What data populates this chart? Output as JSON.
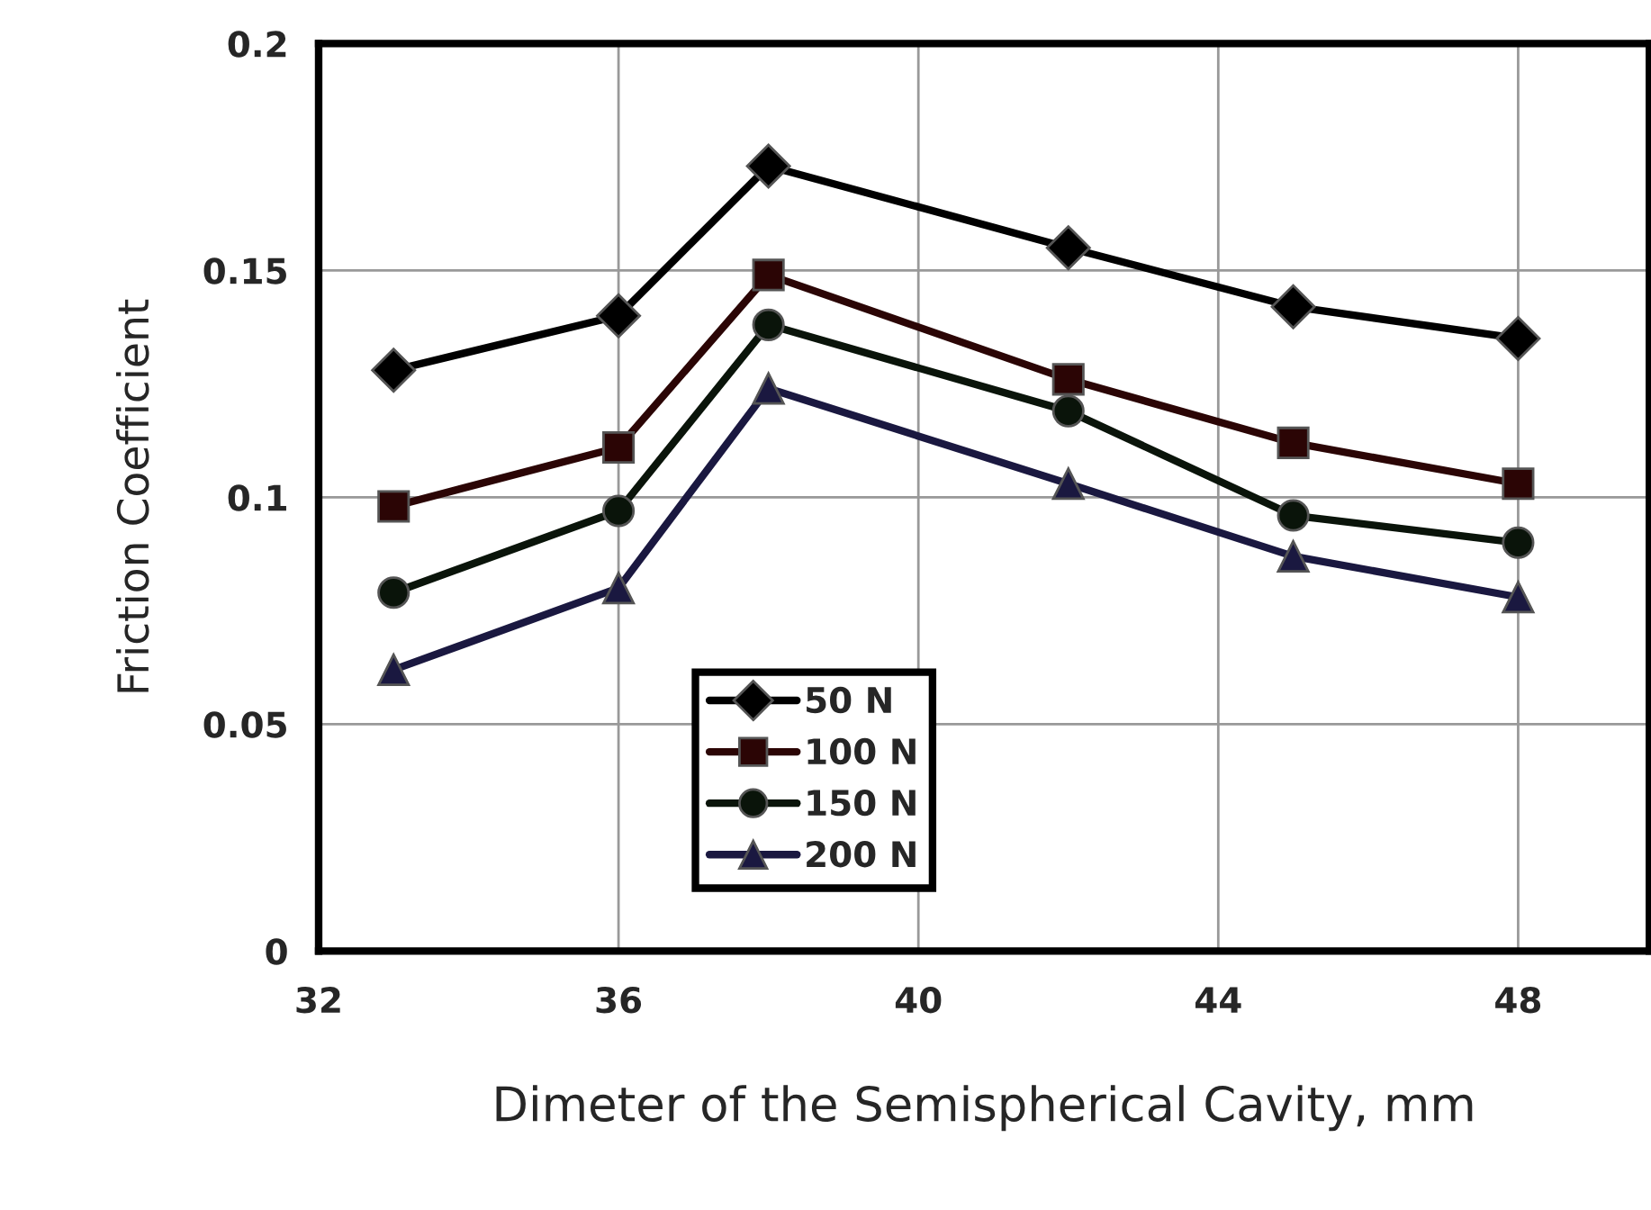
{
  "chart_data": {
    "type": "line",
    "xlabel": "Dimeter of the Semispherical Cavity, mm",
    "ylabel": "Friction Coefficient",
    "x": [
      33,
      36,
      38,
      42,
      45,
      48
    ],
    "series": [
      {
        "name": "50 N",
        "color": "#000000",
        "marker": "diamond",
        "values": [
          0.128,
          0.14,
          0.173,
          0.155,
          0.142,
          0.135
        ]
      },
      {
        "name": "100 N",
        "color": "#2b0505",
        "marker": "square",
        "values": [
          0.098,
          0.111,
          0.149,
          0.126,
          0.112,
          0.103
        ]
      },
      {
        "name": "150 N",
        "color": "#0a140a",
        "marker": "circle",
        "values": [
          0.079,
          0.097,
          0.138,
          0.119,
          0.096,
          0.09
        ]
      },
      {
        "name": "200 N",
        "color": "#1a1840",
        "marker": "triangle",
        "values": [
          0.062,
          0.08,
          0.124,
          0.103,
          0.087,
          0.078
        ]
      }
    ],
    "xlim": [
      32,
      49.75
    ],
    "xticks": [
      32,
      36,
      40,
      44,
      48
    ],
    "ylim": [
      0,
      0.2
    ],
    "yticks": [
      0,
      0.05,
      0.1,
      0.15,
      0.2
    ],
    "grid": true,
    "legend": "bottom",
    "line_style": "solid"
  }
}
